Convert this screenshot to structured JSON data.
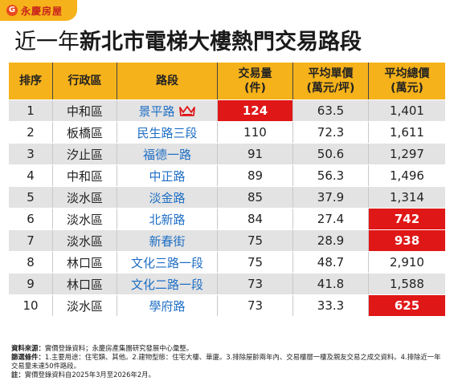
{
  "brand": {
    "logo_char": "G",
    "name": "永慶房屋"
  },
  "headline": {
    "prefix": "近一年",
    "main": "新北市電梯大樓熱門交易路段"
  },
  "table": {
    "headers": [
      "排序",
      "行政區",
      "路段",
      "交易量\n(件)",
      "平均單價\n(萬元/坪)",
      "平均總價\n(萬元)"
    ],
    "rows": [
      {
        "rank": "1",
        "district": "中和區",
        "road": "景平路",
        "volume": "124",
        "unit_price": "63.5",
        "total_price": "1,401"
      },
      {
        "rank": "2",
        "district": "板橋區",
        "road": "民生路三段",
        "volume": "110",
        "unit_price": "72.3",
        "total_price": "1,611"
      },
      {
        "rank": "3",
        "district": "汐止區",
        "road": "福德一路",
        "volume": "91",
        "unit_price": "50.6",
        "total_price": "1,297"
      },
      {
        "rank": "4",
        "district": "中和區",
        "road": "中正路",
        "volume": "89",
        "unit_price": "56.3",
        "total_price": "1,496"
      },
      {
        "rank": "5",
        "district": "淡水區",
        "road": "淡金路",
        "volume": "85",
        "unit_price": "37.9",
        "total_price": "1,314"
      },
      {
        "rank": "6",
        "district": "淡水區",
        "road": "北新路",
        "volume": "84",
        "unit_price": "27.4",
        "total_price": "742"
      },
      {
        "rank": "7",
        "district": "淡水區",
        "road": "新春街",
        "volume": "75",
        "unit_price": "28.9",
        "total_price": "938"
      },
      {
        "rank": "8",
        "district": "林口區",
        "road": "文化三路一段",
        "volume": "75",
        "unit_price": "48.7",
        "total_price": "2,910"
      },
      {
        "rank": "9",
        "district": "林口區",
        "road": "文化二路一段",
        "volume": "73",
        "unit_price": "41.8",
        "total_price": "1,588"
      },
      {
        "rank": "10",
        "district": "淡水區",
        "road": "學府路",
        "volume": "73",
        "unit_price": "33.3",
        "total_price": "625"
      }
    ]
  },
  "notes": {
    "source_label": "資料來源：",
    "source_text": "實價登錄資料；永慶房產集團研究發展中心彙整。",
    "criteria_label": "篩選條件：",
    "criteria_text": "1.主要用途：住宅類、其他。2.建物型態：住宅大樓、華廈。3.排除屋齡兩年內、交易樓層一樓及親友交易之成交資料。4.排除近一年交易量未達50件路段。",
    "note_label": "註：",
    "note_text": "實價登錄資料自2025年3月至2026年2月。"
  },
  "colors": {
    "brand_yellow": "#f6b21a",
    "highlight_red": "#e01717",
    "road_blue": "#1f6fc5",
    "row_gray": "#e3e3e3",
    "crown_red": "#e01717"
  }
}
